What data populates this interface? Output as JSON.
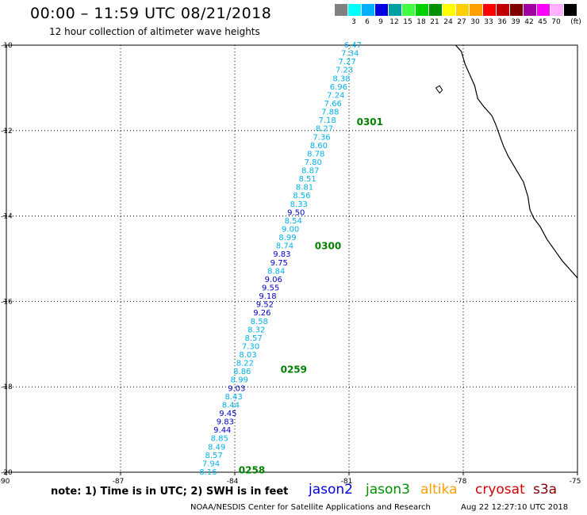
{
  "header": {
    "title": "00:00 – 11:59 UTC 08/21/2018",
    "subtitle": "12 hour collection of altimeter wave heights"
  },
  "color_scale": {
    "unit": "(ft)",
    "swatches": [
      {
        "color": "#808080",
        "label": ""
      },
      {
        "color": "#00ffff",
        "label": "3"
      },
      {
        "color": "#00b0ff",
        "label": "6"
      },
      {
        "color": "#0000e0",
        "label": "9"
      },
      {
        "color": "#00a0a0",
        "label": "12"
      },
      {
        "color": "#40ff40",
        "label": "15"
      },
      {
        "color": "#00d000",
        "label": "18"
      },
      {
        "color": "#009000",
        "label": "21"
      },
      {
        "color": "#ffff00",
        "label": "24"
      },
      {
        "color": "#ffd000",
        "label": "27"
      },
      {
        "color": "#ffa000",
        "label": "30"
      },
      {
        "color": "#ff0000",
        "label": "33"
      },
      {
        "color": "#c00000",
        "label": "36"
      },
      {
        "color": "#800000",
        "label": "39"
      },
      {
        "color": "#a000a0",
        "label": "42"
      },
      {
        "color": "#ff00ff",
        "label": "45"
      },
      {
        "color": "#ffb0ff",
        "label": "70"
      },
      {
        "color": "#000000",
        "label": ""
      }
    ]
  },
  "map": {
    "lon_range": [
      -90,
      -75
    ],
    "lat_range": [
      -20,
      -10
    ],
    "lon_ticks": [
      {
        "value": -90,
        "label": "-90"
      },
      {
        "value": -87,
        "label": "-87"
      },
      {
        "value": -84,
        "label": "-84"
      },
      {
        "value": -81,
        "label": "-81"
      },
      {
        "value": -78,
        "label": "-78"
      },
      {
        "value": -75,
        "label": "-75"
      }
    ],
    "lat_ticks": [
      {
        "value": -10,
        "label": "-10"
      },
      {
        "value": -12,
        "label": "-12"
      },
      {
        "value": -14,
        "label": "-14"
      },
      {
        "value": -16,
        "label": "-16"
      },
      {
        "value": -18,
        "label": "-18"
      },
      {
        "value": -20,
        "label": "-20"
      }
    ],
    "track": {
      "start": {
        "lon": -80.9,
        "lat": -10.0
      },
      "end": {
        "lon": -84.7,
        "lat": -20.0
      },
      "points": [
        {
          "v": "6.47",
          "c": "#00b0e8"
        },
        {
          "v": "7.34",
          "c": "#00b0e8"
        },
        {
          "v": "7.27",
          "c": "#00b0e8"
        },
        {
          "v": "7.23",
          "c": "#00b0e8"
        },
        {
          "v": "8.38",
          "c": "#00b0e8"
        },
        {
          "v": "6.96",
          "c": "#00b0e8"
        },
        {
          "v": "7.24",
          "c": "#00b0e8"
        },
        {
          "v": "7.66",
          "c": "#00b0e8"
        },
        {
          "v": "7.88",
          "c": "#00b0e8"
        },
        {
          "v": "7.18",
          "c": "#00b0e8"
        },
        {
          "v": "8.27",
          "c": "#00b0e8"
        },
        {
          "v": "7.36",
          "c": "#00b0e8"
        },
        {
          "v": "8.60",
          "c": "#00b0e8"
        },
        {
          "v": "8.78",
          "c": "#00b0e8"
        },
        {
          "v": "7.80",
          "c": "#00b0e8"
        },
        {
          "v": "8.87",
          "c": "#00b0e8"
        },
        {
          "v": "8.51",
          "c": "#00b0e8"
        },
        {
          "v": "8.81",
          "c": "#00b0e8"
        },
        {
          "v": "8.56",
          "c": "#00b0e8"
        },
        {
          "v": "8.33",
          "c": "#00b0e8"
        },
        {
          "v": "9.50",
          "c": "#0000c8"
        },
        {
          "v": "8.54",
          "c": "#00b0e8"
        },
        {
          "v": "9.00",
          "c": "#00b0e8"
        },
        {
          "v": "8.99",
          "c": "#00b0e8"
        },
        {
          "v": "8.74",
          "c": "#00b0e8"
        },
        {
          "v": "9.83",
          "c": "#0000c8"
        },
        {
          "v": "9.75",
          "c": "#0000c8"
        },
        {
          "v": "8.84",
          "c": "#00b0e8"
        },
        {
          "v": "9.06",
          "c": "#0000c8"
        },
        {
          "v": "9.55",
          "c": "#0000c8"
        },
        {
          "v": "9.18",
          "c": "#0000c8"
        },
        {
          "v": "9.52",
          "c": "#0000c8"
        },
        {
          "v": "9.26",
          "c": "#0000c8"
        },
        {
          "v": "8.58",
          "c": "#00b0e8"
        },
        {
          "v": "8.32",
          "c": "#00b0e8"
        },
        {
          "v": "8.57",
          "c": "#00b0e8"
        },
        {
          "v": "7.30",
          "c": "#00b0e8"
        },
        {
          "v": "8.03",
          "c": "#00b0e8"
        },
        {
          "v": "8.22",
          "c": "#00b0e8"
        },
        {
          "v": "8.86",
          "c": "#00b0e8"
        },
        {
          "v": "8.99",
          "c": "#00b0e8"
        },
        {
          "v": "9.03",
          "c": "#0000c8"
        },
        {
          "v": "8.43",
          "c": "#00b0e8"
        },
        {
          "v": "8.44",
          "c": "#00b0e8"
        },
        {
          "v": "9.45",
          "c": "#0000c8"
        },
        {
          "v": "9.83",
          "c": "#0000c8"
        },
        {
          "v": "9.44",
          "c": "#0000c8"
        },
        {
          "v": "8.85",
          "c": "#00b0e8"
        },
        {
          "v": "8.49",
          "c": "#00b0e8"
        },
        {
          "v": "8.57",
          "c": "#00b0e8"
        },
        {
          "v": "7.94",
          "c": "#00b0e8"
        },
        {
          "v": "8.16",
          "c": "#00b0e8"
        }
      ]
    },
    "time_labels": [
      {
        "text": "0301",
        "lon": -80.8,
        "lat": -11.8
      },
      {
        "text": "0300",
        "lon": -81.9,
        "lat": -14.7
      },
      {
        "text": "0259",
        "lon": -82.8,
        "lat": -17.6
      },
      {
        "text": "0258",
        "lon": -83.9,
        "lat": -19.95
      }
    ],
    "coast_color": "#000000"
  },
  "footer": {
    "note": "note: 1) Time is in UTC; 2) SWH is in feet",
    "satellites": [
      {
        "name": "jason2",
        "color": "#0000e0"
      },
      {
        "name": "jason3",
        "color": "#009000"
      },
      {
        "name": "altika",
        "color": "#ffa000"
      },
      {
        "name": "cryosat",
        "color": "#d00000"
      },
      {
        "name": "s3a",
        "color": "#800000"
      }
    ],
    "credit": "NOAA/NESDIS Center for Satellite Applications and Research",
    "timestamp": "Aug 22 12:27:10 UTC 2018"
  }
}
